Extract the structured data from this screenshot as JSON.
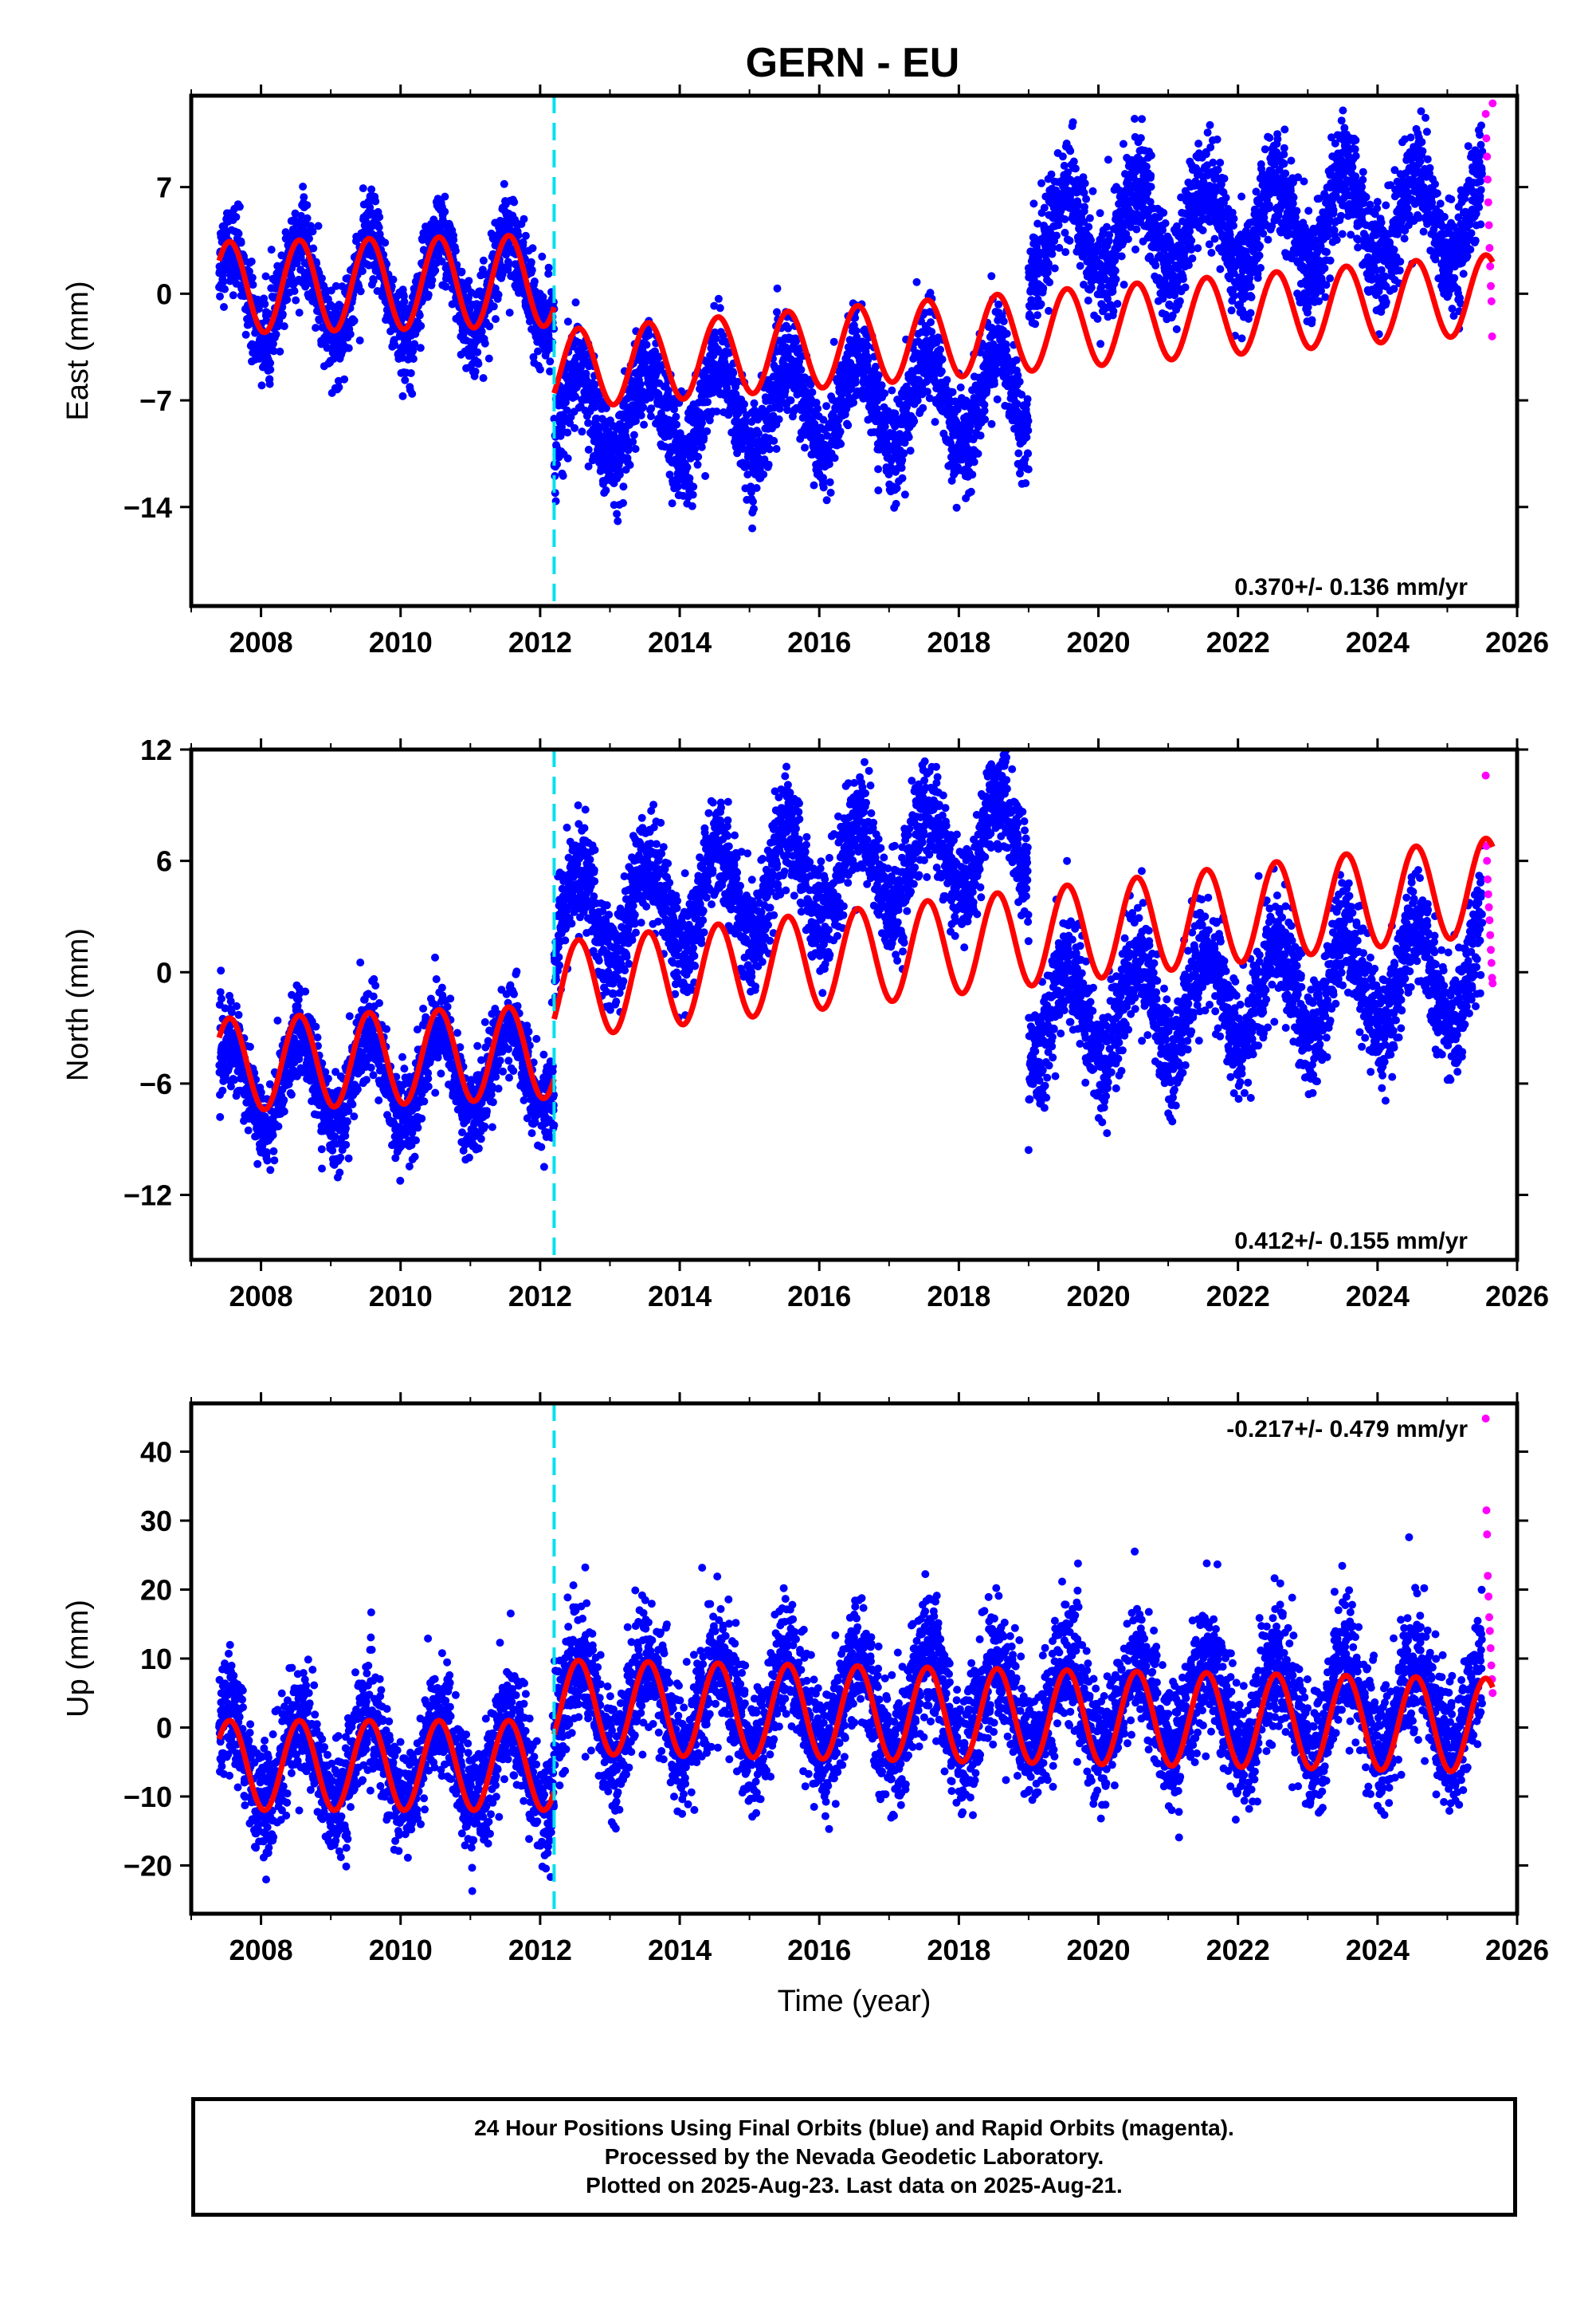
{
  "title": "GERN - EU",
  "footer": {
    "line1": "24 Hour Positions Using Final Orbits (blue) and Rapid Orbits (magenta).",
    "line2": "Processed by the Nevada Geodetic Laboratory.",
    "line3": "Plotted on 2025-Aug-23. Last data on 2025-Aug-21."
  },
  "colors": {
    "final": "#0000ff",
    "rapid": "#ff00ff",
    "model": "#ff0000",
    "break": "#00e0f0"
  },
  "chart_data": [
    {
      "type": "scatter",
      "ylabel": "East (mm)",
      "xlabel": "",
      "rate_label": "0.370+/- 0.136 mm/yr",
      "rate_position": "bottom-right",
      "xlim": [
        2007.0,
        2026.0
      ],
      "ylim": [
        -20.5,
        13.0
      ],
      "yticks": [
        7,
        0,
        -7,
        -14
      ],
      "ytick_labels": [
        "7",
        "0",
        "-7",
        "-14"
      ],
      "xticks": [
        2008,
        2010,
        2012,
        2014,
        2016,
        2018,
        2020,
        2022,
        2024,
        2026
      ],
      "equipment_break": 2012.2,
      "series": [
        {
          "kind": "final",
          "start": 2007.4,
          "end": 2025.5,
          "segments": [
            {
              "from": 2007.4,
              "to": 2012.2,
              "offset": 0.0,
              "trend": 0.2,
              "amp": 3.2,
              "noise": 1.4
            },
            {
              "from": 2012.2,
              "to": 2019.0,
              "offset": -8.3,
              "trend": 0.25,
              "amp": 3.0,
              "noise": 1.6
            },
            {
              "from": 2019.0,
              "to": 2025.5,
              "offset": 3.8,
              "trend": 0.2,
              "amp": 3.0,
              "noise": 1.7
            }
          ]
        },
        {
          "kind": "rapid",
          "start": 2025.55,
          "end": 2025.65,
          "values": [
            11.8,
            10.2,
            9.0,
            7.5,
            6.0,
            4.5,
            3.0,
            1.8,
            0.5,
            -0.5,
            -2.8,
            12.5
          ]
        },
        {
          "kind": "model",
          "segments": [
            {
              "from": 2007.4,
              "to": 2012.2,
              "offset": 0.4,
              "trend": 0.1,
              "amp": 3.0
            },
            {
              "from": 2012.2,
              "to": 2025.65,
              "offset": -5.0,
              "trend": 0.37,
              "amp": 2.6
            }
          ]
        }
      ]
    },
    {
      "type": "scatter",
      "ylabel": "North (mm)",
      "xlabel": "",
      "rate_label": "0.412+/- 0.155 mm/yr",
      "rate_position": "bottom-right",
      "xlim": [
        2007.0,
        2026.0
      ],
      "ylim": [
        -15.5,
        12.0
      ],
      "yticks": [
        12,
        6,
        0,
        -6,
        -12
      ],
      "ytick_labels": [
        "12",
        "6",
        "0",
        "-6",
        "-12"
      ],
      "xticks": [
        2008,
        2010,
        2012,
        2014,
        2016,
        2018,
        2020,
        2022,
        2024,
        2026
      ],
      "equipment_break": 2012.2,
      "series": [
        {
          "kind": "final",
          "start": 2007.4,
          "end": 2025.5,
          "segments": [
            {
              "from": 2007.4,
              "to": 2012.2,
              "offset": -6.2,
              "trend": 0.25,
              "amp": 2.4,
              "noise": 1.2
            },
            {
              "from": 2012.2,
              "to": 2019.0,
              "offset": 2.5,
              "trend": 0.7,
              "amp": 2.6,
              "noise": 1.4
            },
            {
              "from": 2019.0,
              "to": 2025.5,
              "offset": -2.5,
              "trend": 0.4,
              "amp": 2.6,
              "noise": 1.5
            }
          ]
        },
        {
          "kind": "rapid",
          "start": 2025.55,
          "end": 2025.65,
          "values": [
            10.6,
            6.8,
            6.0,
            5.0,
            4.2,
            3.5,
            2.8,
            2.0,
            1.2,
            0.5,
            -0.3,
            -0.6
          ]
        },
        {
          "kind": "model",
          "segments": [
            {
              "from": 2007.4,
              "to": 2012.2,
              "offset": -5.0,
              "trend": 0.15,
              "amp": 2.5
            },
            {
              "from": 2012.2,
              "to": 2025.65,
              "offset": -1.0,
              "trend": 0.42,
              "amp": 2.6
            }
          ]
        }
      ]
    },
    {
      "type": "scatter",
      "ylabel": "Up (mm)",
      "xlabel": "Time (year)",
      "rate_label": "-0.217+/- 0.479 mm/yr",
      "rate_position": "top-right",
      "xlim": [
        2007.0,
        2026.0
      ],
      "ylim": [
        -27.0,
        47.0
      ],
      "yticks": [
        40,
        30,
        20,
        10,
        0,
        -10,
        -20
      ],
      "ytick_labels": [
        "40",
        "30",
        "20",
        "10",
        "0",
        "-10",
        "-20"
      ],
      "xticks": [
        2008,
        2010,
        2012,
        2014,
        2016,
        2018,
        2020,
        2022,
        2024,
        2026
      ],
      "equipment_break": 2012.2,
      "series": [
        {
          "kind": "final",
          "start": 2007.4,
          "end": 2025.5,
          "segments": [
            {
              "from": 2007.4,
              "to": 2012.2,
              "offset": -5.0,
              "trend": 0.0,
              "amp": 6.5,
              "noise": 4.0
            },
            {
              "from": 2012.2,
              "to": 2025.5,
              "offset": 3.0,
              "trend": 0.0,
              "amp": 6.5,
              "noise": 4.5
            }
          ]
        },
        {
          "kind": "rapid",
          "start": 2025.55,
          "end": 2025.65,
          "values": [
            44.8,
            31.5,
            28.0,
            22.0,
            19.0,
            16.0,
            14.0,
            11.5,
            9.0,
            7.0,
            5.0
          ]
        },
        {
          "kind": "model",
          "segments": [
            {
              "from": 2007.4,
              "to": 2012.2,
              "offset": -5.5,
              "trend": 0.0,
              "amp": 6.5
            },
            {
              "from": 2012.2,
              "to": 2025.65,
              "offset": 3.0,
              "trend": -0.2,
              "amp": 6.8
            }
          ]
        }
      ]
    }
  ]
}
